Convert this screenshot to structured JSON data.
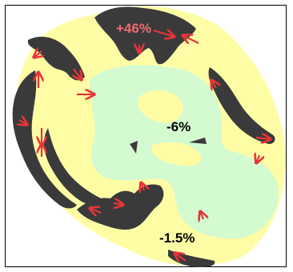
{
  "labels": {
    "top_change": "+46%",
    "center_change": "-6%",
    "bottom_change": "-1.5%"
  },
  "colors": {
    "background": "#ffffff",
    "outer_zone": "#fffca6",
    "inner_zone": "#d4fad0",
    "dark_zone": "#3a3a3a",
    "arrow": "#e8343a",
    "highlight_label": "#f06b73",
    "label_text": "#000000"
  },
  "icons": {
    "arrow": "red-line-arrow"
  }
}
